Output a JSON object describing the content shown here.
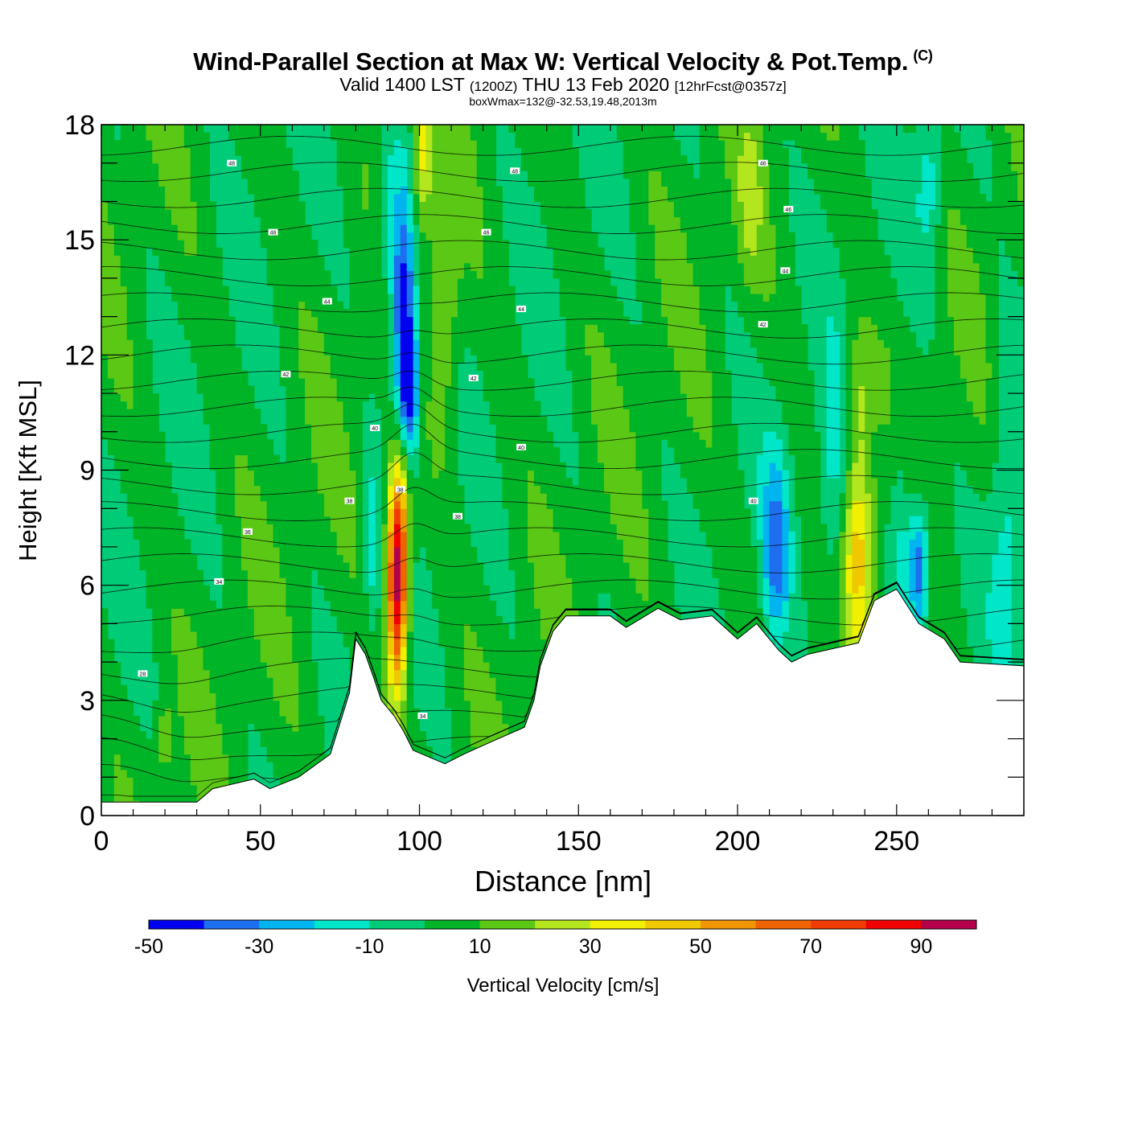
{
  "title": {
    "main": "Wind-Parallel Section at Max W: Vertical Velocity & Pot.Temp.",
    "copyright": "(C)",
    "valid_prefix": "Valid 1400 LST",
    "valid_utc": "(1200Z)",
    "valid_date": "THU 13 Feb 2020",
    "forecast_info": "[12hrFcst@0357z]",
    "box_info": "boxWmax=132@-32.53,19.48,2013m"
  },
  "chart_data": {
    "type": "heatmap",
    "xlabel": "Distance [nm]",
    "ylabel": "Height [Kft MSL]",
    "xlim": [
      0,
      290
    ],
    "ylim": [
      0,
      18
    ],
    "x_ticks": [
      0,
      50,
      100,
      150,
      200,
      250
    ],
    "y_ticks": [
      0,
      3,
      6,
      9,
      12,
      15,
      18
    ],
    "colorbar": {
      "label": "Vertical Velocity [cm/s]",
      "bounds": [
        -50,
        -40,
        -30,
        -20,
        -10,
        0,
        10,
        20,
        30,
        40,
        50,
        60,
        70,
        80,
        90,
        100
      ],
      "tick_labels": [
        "-50",
        "-30",
        "-10",
        "10",
        "30",
        "50",
        "70",
        "90"
      ],
      "colors": [
        "#0000f0",
        "#1e6ef0",
        "#00b4f0",
        "#00e6c8",
        "#00cc78",
        "#00b428",
        "#5ac814",
        "#b4e61e",
        "#f0f000",
        "#f0c800",
        "#f09600",
        "#f06400",
        "#f03c00",
        "#f00000",
        "#b4004b"
      ]
    },
    "background_class": 4,
    "terrain": [
      [
        0,
        0.35
      ],
      [
        30,
        0.35
      ],
      [
        35,
        0.7
      ],
      [
        48,
        0.95
      ],
      [
        53,
        0.7
      ],
      [
        62,
        1.0
      ],
      [
        72,
        1.6
      ],
      [
        78,
        3.2
      ],
      [
        80,
        4.6
      ],
      [
        83,
        4.2
      ],
      [
        86,
        3.5
      ],
      [
        88,
        3.0
      ],
      [
        92,
        2.6
      ],
      [
        95,
        2.2
      ],
      [
        98,
        1.7
      ],
      [
        108,
        1.35
      ],
      [
        114,
        1.6
      ],
      [
        122,
        1.9
      ],
      [
        133,
        2.3
      ],
      [
        136,
        3.0
      ],
      [
        138,
        3.9
      ],
      [
        142,
        4.8
      ],
      [
        146,
        5.2
      ],
      [
        160,
        5.2
      ],
      [
        165,
        4.9
      ],
      [
        175,
        5.4
      ],
      [
        182,
        5.1
      ],
      [
        192,
        5.2
      ],
      [
        200,
        4.6
      ],
      [
        206,
        5.0
      ],
      [
        213,
        4.3
      ],
      [
        217,
        4.0
      ],
      [
        222,
        4.2
      ],
      [
        238,
        4.5
      ],
      [
        243,
        5.6
      ],
      [
        250,
        5.9
      ],
      [
        257,
        5.0
      ],
      [
        265,
        4.6
      ],
      [
        270,
        4.0
      ],
      [
        290,
        3.9
      ]
    ],
    "w_features": [
      {
        "x": 93,
        "y": 6.0,
        "sx": 2.2,
        "sy": 1.9,
        "amp": 85
      },
      {
        "x": 94,
        "y": 8.0,
        "sx": 2.5,
        "sy": 1.8,
        "amp": 30
      },
      {
        "x": 101,
        "y": 17.2,
        "sx": 2.2,
        "sy": 1.4,
        "amp": 30
      },
      {
        "x": 108,
        "y": 13.0,
        "sx": 3.2,
        "sy": 2.4,
        "amp": 18
      },
      {
        "x": 95,
        "y": 13.0,
        "sx": 2.6,
        "sy": 2.3,
        "amp": -55
      },
      {
        "x": 97,
        "y": 11.0,
        "sx": 2.2,
        "sy": 1.3,
        "amp": -40
      },
      {
        "x": 90,
        "y": 15.5,
        "sx": 3.0,
        "sy": 1.5,
        "amp": -20
      },
      {
        "x": 85,
        "y": 7.0,
        "sx": 2.0,
        "sy": 1.6,
        "amp": -20
      },
      {
        "x": 238,
        "y": 7.0,
        "sx": 3.2,
        "sy": 1.8,
        "amp": 40
      },
      {
        "x": 238,
        "y": 11.0,
        "sx": 2.5,
        "sy": 1.2,
        "amp": 18
      },
      {
        "x": 212,
        "y": 6.8,
        "sx": 3.0,
        "sy": 1.8,
        "amp": -35
      },
      {
        "x": 257,
        "y": 6.5,
        "sx": 2.4,
        "sy": 1.2,
        "amp": -45
      },
      {
        "x": 251,
        "y": 7.5,
        "sx": 2.6,
        "sy": 2.0,
        "amp": -18
      },
      {
        "x": 230,
        "y": 8.5,
        "sx": 3.5,
        "sy": 2.5,
        "amp": -18
      },
      {
        "x": 285,
        "y": 8.0,
        "sx": 4.0,
        "sy": 3.0,
        "amp": -18
      },
      {
        "x": 260,
        "y": 16.5,
        "sx": 3.0,
        "sy": 1.5,
        "amp": -20
      },
      {
        "x": 204,
        "y": 16.0,
        "sx": 2.5,
        "sy": 1.5,
        "amp": 15
      },
      {
        "x": 20,
        "y": 2.0,
        "sx": 2.0,
        "sy": 0.7,
        "amp": 15
      }
    ],
    "theta_labels": [
      {
        "x": 41,
        "y": 17.0,
        "text": "48"
      },
      {
        "x": 130,
        "y": 16.8,
        "text": "48"
      },
      {
        "x": 208,
        "y": 17.0,
        "text": "46"
      },
      {
        "x": 216,
        "y": 15.8,
        "text": "46"
      },
      {
        "x": 54,
        "y": 15.2,
        "text": "46"
      },
      {
        "x": 121,
        "y": 15.2,
        "text": "46"
      },
      {
        "x": 71,
        "y": 13.4,
        "text": "44"
      },
      {
        "x": 132,
        "y": 13.2,
        "text": "44"
      },
      {
        "x": 215,
        "y": 14.2,
        "text": "44"
      },
      {
        "x": 208,
        "y": 12.8,
        "text": "42"
      },
      {
        "x": 58,
        "y": 11.5,
        "text": "42"
      },
      {
        "x": 117,
        "y": 11.4,
        "text": "42"
      },
      {
        "x": 86,
        "y": 10.1,
        "text": "40"
      },
      {
        "x": 132,
        "y": 9.6,
        "text": "40"
      },
      {
        "x": 205,
        "y": 8.2,
        "text": "40"
      },
      {
        "x": 94,
        "y": 8.5,
        "text": "38"
      },
      {
        "x": 112,
        "y": 7.8,
        "text": "38"
      },
      {
        "x": 78,
        "y": 8.2,
        "text": "38"
      },
      {
        "x": 46,
        "y": 7.4,
        "text": "36"
      },
      {
        "x": 37,
        "y": 6.1,
        "text": "34"
      },
      {
        "x": 13,
        "y": 3.7,
        "text": "28"
      },
      {
        "x": 101,
        "y": 2.6,
        "text": "34"
      }
    ]
  }
}
